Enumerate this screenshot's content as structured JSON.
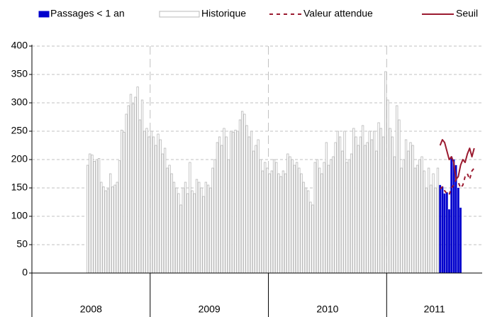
{
  "chart_data": {
    "type": "bar",
    "categories": [
      "2008",
      "2009",
      "2010",
      "2011"
    ],
    "ylim": [
      0,
      400
    ],
    "yticks": [
      0,
      50,
      100,
      150,
      200,
      250,
      300,
      350,
      400
    ],
    "grid": true,
    "legend": "top",
    "series": [
      {
        "name": "Passages < 1 an",
        "color": "#0000cc",
        "type": "bar",
        "values": [
          [],
          [],
          [],
          [
            null,
            null,
            null,
            null,
            null,
            null,
            null,
            null,
            null,
            null,
            null,
            null,
            null,
            null,
            null,
            null,
            null,
            null,
            null,
            null,
            null,
            null,
            null,
            155,
            152,
            140,
            142,
            112,
            205,
            200,
            190,
            150,
            115,
            null,
            null,
            null,
            null,
            null,
            null,
            null,
            null,
            null
          ]
        ]
      },
      {
        "name": "Historique",
        "color": "#ffffff",
        "stroke": "#b8b8b8",
        "type": "bar",
        "values": [
          [
            null,
            null,
            null,
            null,
            null,
            null,
            null,
            null,
            null,
            null,
            null,
            null,
            null,
            null,
            null,
            null,
            null,
            null,
            null,
            null,
            null,
            null,
            null,
            null,
            190,
            210,
            208,
            197,
            200,
            202,
            160,
            152,
            145,
            148,
            175,
            152,
            155,
            160,
            198,
            252,
            248,
            280,
            295,
            315,
            298,
            310,
            328,
            270,
            305,
            250,
            255,
            240
          ],
          [
            250,
            240,
            225,
            245,
            235,
            210,
            220,
            185,
            190,
            175,
            160,
            150,
            140,
            120,
            150,
            160,
            140,
            195,
            145,
            140,
            165,
            160,
            150,
            135,
            160,
            155,
            150,
            185,
            200,
            230,
            240,
            225,
            255,
            240,
            200,
            250,
            248,
            252,
            250,
            270,
            285,
            280,
            260,
            240,
            250,
            215,
            225,
            235,
            200,
            180,
            195,
            185
          ],
          [
            175,
            180,
            200,
            195,
            175,
            170,
            180,
            175,
            210,
            205,
            200,
            190,
            195,
            185,
            175,
            160,
            150,
            145,
            125,
            120,
            195,
            200,
            185,
            175,
            195,
            230,
            190,
            200,
            205,
            230,
            250,
            240,
            215,
            250,
            195,
            200,
            210,
            255,
            240,
            225,
            240,
            260,
            225,
            230,
            250,
            235,
            250,
            215,
            265,
            255,
            240,
            355
          ],
          [
            305,
            255,
            240,
            205,
            295,
            270,
            185,
            200,
            235,
            215,
            230,
            225,
            185,
            190,
            200,
            205,
            180,
            150,
            185,
            155,
            175,
            150,
            185,
            null,
            null,
            null,
            null,
            null,
            null,
            null,
            null,
            null,
            null,
            null,
            null,
            null,
            null,
            null,
            null,
            null,
            null,
            null
          ]
        ]
      },
      {
        "name": "Valeur attendue",
        "color": "#9b1b30",
        "type": "line",
        "dash": true,
        "values": [
          [],
          [],
          [],
          [
            null,
            null,
            null,
            null,
            null,
            null,
            null,
            null,
            null,
            null,
            null,
            null,
            null,
            null,
            null,
            null,
            null,
            null,
            null,
            null,
            null,
            null,
            null,
            148,
            152,
            145,
            140,
            138,
            150,
            155,
            165,
            160,
            150,
            155,
            170,
            175,
            165,
            180,
            185,
            null,
            null,
            null
          ]
        ]
      },
      {
        "name": "Seuil",
        "color": "#9b1b30",
        "type": "line",
        "dash": false,
        "values": [
          [],
          [],
          [],
          [
            null,
            null,
            null,
            null,
            null,
            null,
            null,
            null,
            null,
            null,
            null,
            null,
            null,
            null,
            null,
            null,
            null,
            null,
            null,
            null,
            null,
            null,
            null,
            225,
            235,
            230,
            215,
            200,
            205,
            195,
            165,
            170,
            190,
            200,
            195,
            210,
            220,
            205,
            220,
            null,
            null,
            null
          ]
        ]
      }
    ]
  }
}
